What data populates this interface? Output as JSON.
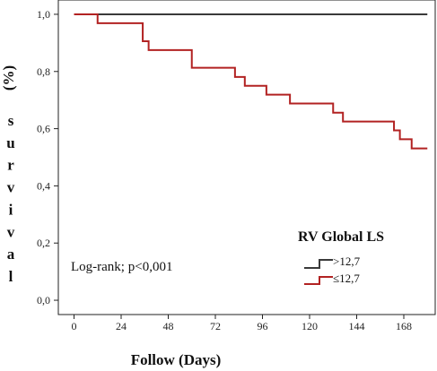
{
  "chart_data": {
    "type": "line",
    "title": "",
    "xlabel": "Follow (Days)",
    "ylabel_unit": "(%)",
    "ylabel": "survival",
    "x_ticks": [
      0,
      24,
      48,
      72,
      96,
      120,
      144,
      168
    ],
    "y_ticks": [
      "0,0",
      "0,2",
      "0,4",
      "0,6",
      "0,8",
      "1,0"
    ],
    "xlim": [
      -8,
      184
    ],
    "ylim": [
      -0.05,
      1.05
    ],
    "annotation": "Log-rank; p<0,001",
    "legend": {
      "title": "RV Global LS",
      "placement": "bottom-right"
    },
    "series": [
      {
        "name": ">12,7",
        "color": "#3a3a3a",
        "steps": [
          [
            0,
            1.0
          ],
          [
            180,
            1.0
          ]
        ]
      },
      {
        "name": "≤12,7",
        "color": "#b22222",
        "steps": [
          [
            0,
            1.0
          ],
          [
            12,
            0.969
          ],
          [
            35,
            0.906
          ],
          [
            38,
            0.875
          ],
          [
            60,
            0.813
          ],
          [
            82,
            0.781
          ],
          [
            87,
            0.75
          ],
          [
            98,
            0.719
          ],
          [
            110,
            0.688
          ],
          [
            132,
            0.656
          ],
          [
            137,
            0.625
          ],
          [
            163,
            0.594
          ],
          [
            166,
            0.563
          ],
          [
            172,
            0.531
          ],
          [
            180,
            0.531
          ]
        ]
      }
    ]
  }
}
